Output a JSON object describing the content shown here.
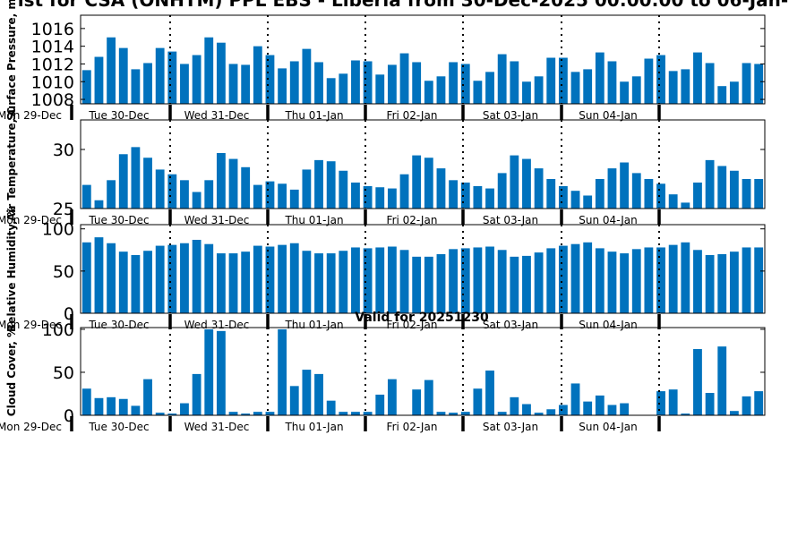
{
  "title": "ist for CSA (ONHTM) PPL EBS - Liberia from 30-Dec-2025 00:00:00 to 06-Jan-",
  "valid_text": "Valid for 20251230",
  "colors": {
    "bar": "#0072bd",
    "divider": "#000000"
  },
  "x_tick_labels": [
    "Mon 29-Dec",
    "Tue 30-Dec",
    "Wed 31-Dec",
    "Thu 01-Jan",
    "Fri 02-Jan",
    "Sat 03-Jan",
    "Sun 04-Jan"
  ],
  "chart_data": [
    {
      "type": "bar",
      "ylabel": "Surface Pressure, m",
      "ylim": [
        1007.5,
        1017.5
      ],
      "yticks": [
        1008,
        1010,
        1012,
        1014,
        1016
      ],
      "grid": false,
      "values": [
        1011.3,
        1012.8,
        1015.0,
        1013.8,
        1011.4,
        1012.1,
        1013.8,
        1013.4,
        1012.0,
        1013.0,
        1015.0,
        1014.4,
        1012.0,
        1011.9,
        1014.0,
        1013.0,
        1011.5,
        1012.3,
        1013.7,
        1012.2,
        1010.4,
        1010.9,
        1012.4,
        1012.3,
        1010.8,
        1011.9,
        1013.2,
        1012.2,
        1010.1,
        1010.6,
        1012.2,
        1012.0,
        1010.1,
        1011.1,
        1013.1,
        1012.3,
        1010.0,
        1010.6,
        1012.7,
        1012.7,
        1011.1,
        1011.4,
        1013.3,
        1012.3,
        1010.0,
        1010.6,
        1012.6,
        1013.0,
        1011.2,
        1011.4,
        1013.3,
        1012.1,
        1009.5,
        1010.0,
        1012.1,
        1012.0
      ]
    },
    {
      "type": "bar",
      "ylabel": "Air Temperature, C",
      "ylim": [
        25,
        32.5
      ],
      "yticks": [
        25,
        30
      ],
      "grid": false,
      "values": [
        27.0,
        25.7,
        27.4,
        29.6,
        30.2,
        29.3,
        28.3,
        27.9,
        27.4,
        26.4,
        27.4,
        29.7,
        29.2,
        28.5,
        27.0,
        27.3,
        27.1,
        26.6,
        28.3,
        29.1,
        29.0,
        28.2,
        27.2,
        26.9,
        26.8,
        26.7,
        27.9,
        29.5,
        29.3,
        28.4,
        27.4,
        27.2,
        26.9,
        26.7,
        28.0,
        29.5,
        29.2,
        28.4,
        27.5,
        26.9,
        26.5,
        26.1,
        27.5,
        28.4,
        28.9,
        28.0,
        27.5,
        27.1,
        26.2,
        25.5,
        27.2,
        29.1,
        28.6,
        28.2,
        27.5,
        27.5
      ]
    },
    {
      "type": "bar",
      "ylabel": "Relative Humidity, %",
      "ylim": [
        0,
        105
      ],
      "yticks": [
        0,
        50,
        100
      ],
      "grid": false,
      "values": [
        84,
        90,
        83,
        73,
        69,
        74,
        80,
        81,
        83,
        87,
        82,
        71,
        71,
        73,
        80,
        79,
        81,
        83,
        74,
        71,
        71,
        74,
        78,
        77,
        78,
        79,
        75,
        67,
        67,
        70,
        76,
        77,
        78,
        79,
        75,
        67,
        68,
        72,
        77,
        80,
        82,
        84,
        77,
        73,
        71,
        76,
        78,
        78,
        81,
        84,
        75,
        69,
        70,
        73,
        78,
        78
      ]
    },
    {
      "type": "bar",
      "ylabel": "Cloud Cover, %",
      "ylim": [
        0,
        102
      ],
      "yticks": [
        0,
        50,
        100
      ],
      "grid": false,
      "values": [
        31,
        20,
        21,
        19,
        11,
        42,
        3,
        2,
        14,
        48,
        100,
        98,
        4,
        2,
        4,
        4,
        100,
        34,
        53,
        48,
        17,
        4,
        4,
        4,
        24,
        42,
        0,
        30,
        41,
        4,
        3,
        4,
        31,
        52,
        4,
        21,
        13,
        3,
        7,
        12,
        37,
        16,
        23,
        12,
        14,
        0,
        0,
        28,
        30,
        2,
        77,
        26,
        80,
        5,
        22,
        28
      ]
    }
  ]
}
